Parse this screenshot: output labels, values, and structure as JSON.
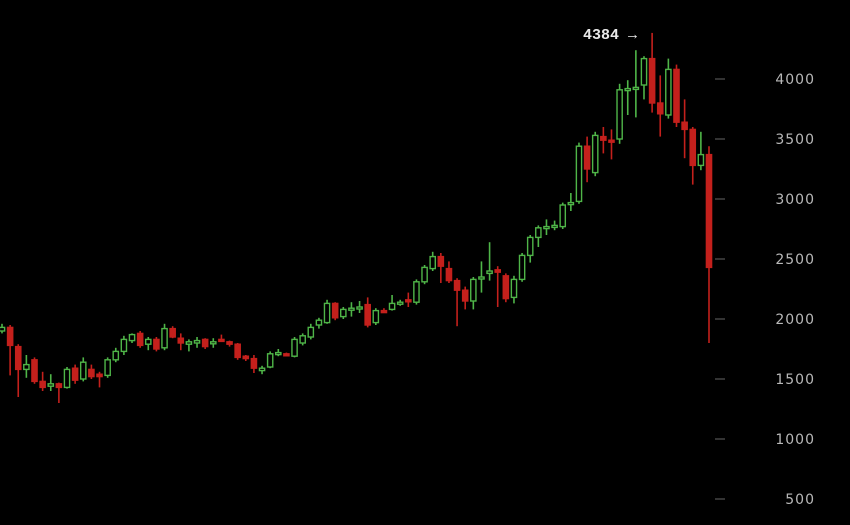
{
  "chart_data": {
    "type": "candlestick",
    "title": "",
    "xlabel": "",
    "ylabel": "",
    "ylim": [
      420,
      4420
    ],
    "y_ticks": [
      500,
      1000,
      1500,
      2000,
      2500,
      3000,
      3500,
      4000
    ],
    "y_axis_position": "right",
    "grid": false,
    "colors": {
      "up": "#4fb548",
      "down": "#c4201c",
      "background": "#000000",
      "text": "#b8b8b8"
    },
    "annotation": {
      "label": "4384 →",
      "value": 4384
    },
    "candle_fields": [
      "open",
      "high",
      "low",
      "close"
    ],
    "candles": [
      [
        1900,
        1960,
        1880,
        1930
      ],
      [
        1930,
        1950,
        1530,
        1780
      ],
      [
        1770,
        1790,
        1350,
        1580
      ],
      [
        1580,
        1700,
        1510,
        1620
      ],
      [
        1660,
        1680,
        1460,
        1480
      ],
      [
        1480,
        1560,
        1400,
        1430
      ],
      [
        1440,
        1540,
        1400,
        1460
      ],
      [
        1460,
        1470,
        1300,
        1430
      ],
      [
        1430,
        1600,
        1420,
        1580
      ],
      [
        1590,
        1620,
        1460,
        1490
      ],
      [
        1500,
        1680,
        1480,
        1640
      ],
      [
        1580,
        1620,
        1500,
        1520
      ],
      [
        1540,
        1560,
        1430,
        1520
      ],
      [
        1530,
        1680,
        1510,
        1660
      ],
      [
        1660,
        1760,
        1640,
        1730
      ],
      [
        1730,
        1860,
        1700,
        1830
      ],
      [
        1820,
        1880,
        1800,
        1870
      ],
      [
        1880,
        1900,
        1760,
        1780
      ],
      [
        1790,
        1850,
        1740,
        1830
      ],
      [
        1830,
        1850,
        1730,
        1750
      ],
      [
        1760,
        1960,
        1740,
        1920
      ],
      [
        1920,
        1940,
        1840,
        1850
      ],
      [
        1840,
        1880,
        1740,
        1800
      ],
      [
        1790,
        1830,
        1730,
        1810
      ],
      [
        1800,
        1850,
        1760,
        1820
      ],
      [
        1830,
        1840,
        1750,
        1770
      ],
      [
        1800,
        1840,
        1760,
        1810
      ],
      [
        1830,
        1870,
        1810,
        1820
      ],
      [
        1810,
        1820,
        1770,
        1790
      ],
      [
        1790,
        1800,
        1660,
        1680
      ],
      [
        1690,
        1700,
        1650,
        1670
      ],
      [
        1670,
        1700,
        1550,
        1590
      ],
      [
        1570,
        1610,
        1540,
        1590
      ],
      [
        1600,
        1730,
        1590,
        1710
      ],
      [
        1710,
        1750,
        1690,
        1720
      ],
      [
        1710,
        1720,
        1690,
        1700
      ],
      [
        1690,
        1850,
        1680,
        1830
      ],
      [
        1800,
        1880,
        1780,
        1860
      ],
      [
        1850,
        1960,
        1830,
        1930
      ],
      [
        1950,
        2010,
        1920,
        1990
      ],
      [
        1970,
        2160,
        1960,
        2130
      ],
      [
        2130,
        2140,
        1990,
        2010
      ],
      [
        2020,
        2100,
        2000,
        2080
      ],
      [
        2080,
        2140,
        2020,
        2090
      ],
      [
        2090,
        2150,
        2050,
        2100
      ],
      [
        2120,
        2180,
        1930,
        1950
      ],
      [
        1970,
        2090,
        1950,
        2070
      ],
      [
        2070,
        2090,
        2050,
        2060
      ],
      [
        2080,
        2200,
        2070,
        2130
      ],
      [
        2130,
        2160,
        2110,
        2140
      ],
      [
        2160,
        2220,
        2100,
        2150
      ],
      [
        2140,
        2330,
        2120,
        2310
      ],
      [
        2310,
        2450,
        2290,
        2430
      ],
      [
        2420,
        2560,
        2400,
        2520
      ],
      [
        2520,
        2550,
        2300,
        2440
      ],
      [
        2420,
        2480,
        2300,
        2320
      ],
      [
        2320,
        2340,
        1940,
        2240
      ],
      [
        2240,
        2270,
        2080,
        2150
      ],
      [
        2150,
        2350,
        2080,
        2330
      ],
      [
        2340,
        2480,
        2220,
        2350
      ],
      [
        2380,
        2640,
        2320,
        2400
      ],
      [
        2410,
        2440,
        2100,
        2390
      ],
      [
        2360,
        2380,
        2140,
        2170
      ],
      [
        2180,
        2360,
        2130,
        2330
      ],
      [
        2330,
        2550,
        2310,
        2530
      ],
      [
        2530,
        2700,
        2470,
        2680
      ],
      [
        2680,
        2780,
        2600,
        2760
      ],
      [
        2760,
        2830,
        2700,
        2770
      ],
      [
        2770,
        2820,
        2740,
        2780
      ],
      [
        2770,
        2970,
        2750,
        2950
      ],
      [
        2960,
        3050,
        2900,
        2970
      ],
      [
        2980,
        3470,
        2960,
        3440
      ],
      [
        3440,
        3520,
        3140,
        3250
      ],
      [
        3220,
        3560,
        3190,
        3530
      ],
      [
        3520,
        3600,
        3380,
        3490
      ],
      [
        3490,
        3580,
        3330,
        3480
      ],
      [
        3500,
        3960,
        3460,
        3910
      ],
      [
        3910,
        3990,
        3700,
        3920
      ],
      [
        3920,
        4240,
        3680,
        3930
      ],
      [
        3950,
        4190,
        3830,
        4170
      ],
      [
        4170,
        4384,
        3720,
        3800
      ],
      [
        3800,
        4030,
        3520,
        3710
      ],
      [
        3700,
        4170,
        3670,
        4080
      ],
      [
        4080,
        4120,
        3600,
        3640
      ],
      [
        3640,
        3830,
        3340,
        3580
      ],
      [
        3580,
        3600,
        3120,
        3280
      ],
      [
        3280,
        3560,
        3240,
        3370
      ],
      [
        3370,
        3440,
        1800,
        2430
      ]
    ]
  }
}
